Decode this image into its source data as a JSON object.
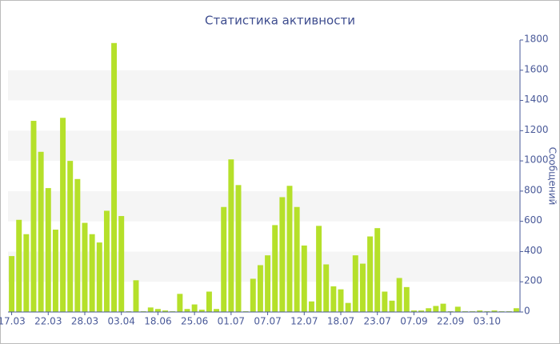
{
  "chart_data": {
    "type": "bar",
    "title": "Статистика активности",
    "y_label": "Сообщений",
    "categories": [
      "17.03",
      null,
      null,
      null,
      null,
      "22.03",
      null,
      null,
      null,
      null,
      "28.03",
      null,
      null,
      null,
      null,
      "03.04",
      null,
      null,
      null,
      null,
      "18.06",
      null,
      null,
      null,
      null,
      "25.06",
      null,
      null,
      null,
      null,
      "01.07",
      null,
      null,
      null,
      null,
      "07.07",
      null,
      null,
      null,
      null,
      "12.07",
      null,
      null,
      null,
      null,
      "18.07",
      null,
      null,
      null,
      null,
      "23.07",
      null,
      null,
      null,
      null,
      "07.09",
      null,
      null,
      null,
      null,
      "22.09",
      null,
      null,
      null,
      null,
      "03.10",
      null,
      null,
      null,
      null
    ],
    "values": [
      370,
      610,
      515,
      1265,
      1060,
      820,
      545,
      1285,
      1000,
      880,
      590,
      515,
      460,
      670,
      1780,
      635,
      5,
      210,
      5,
      30,
      20,
      10,
      5,
      120,
      20,
      50,
      15,
      135,
      20,
      695,
      1010,
      840,
      5,
      220,
      310,
      375,
      575,
      760,
      835,
      695,
      440,
      70,
      570,
      315,
      170,
      150,
      60,
      375,
      320,
      500,
      555,
      135,
      75,
      225,
      165,
      10,
      10,
      25,
      40,
      55,
      5,
      35,
      5,
      5,
      10,
      5,
      10,
      5,
      5,
      25
    ],
    "color": "#b5e02a",
    "ylim": [
      0,
      1800
    ],
    "yticks": [
      0,
      200,
      400,
      600,
      800,
      1000,
      1200,
      1400,
      1600,
      1800
    ],
    "grid": true
  }
}
